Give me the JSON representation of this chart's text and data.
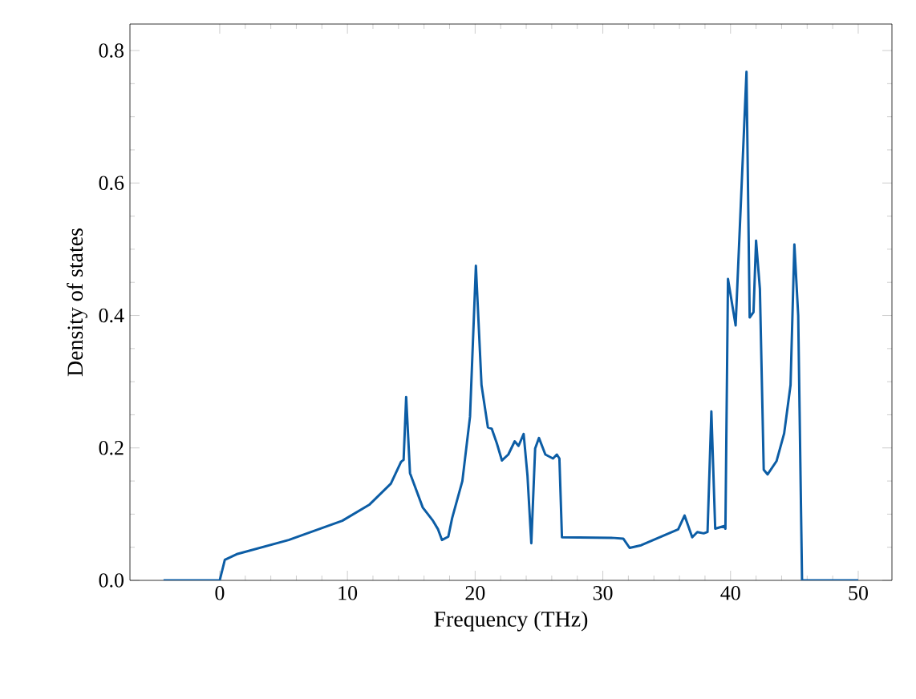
{
  "chart_data": {
    "type": "line",
    "xlabel": "Frequency (THz)",
    "ylabel": "Density of states",
    "x": [
      -4.4,
      0.0,
      0.4,
      1.4,
      5.4,
      9.6,
      11.7,
      13.4,
      14.2,
      14.4,
      14.6,
      14.9,
      15.9,
      16.7,
      17.1,
      17.4,
      17.9,
      18.2,
      19.0,
      19.6,
      20.06,
      20.5,
      21.0,
      21.3,
      21.7,
      22.1,
      22.6,
      23.1,
      23.4,
      23.8,
      24.1,
      24.4,
      24.7,
      25.0,
      25.5,
      26.1,
      26.4,
      26.6,
      26.8,
      30.9,
      31.6,
      32.1,
      33.0,
      35.9,
      36.4,
      37.0,
      37.4,
      37.9,
      38.2,
      38.5,
      38.8,
      39.5,
      39.6,
      39.8,
      40.4,
      41.25,
      41.5,
      41.8,
      42.0,
      42.3,
      42.6,
      42.9,
      43.6,
      44.2,
      44.7,
      45.0,
      45.3,
      45.6,
      50.0
    ],
    "series": [
      {
        "color": "#0c5da5",
        "values": [
          0,
          0,
          0.031,
          0.04,
          0.061,
          0.09,
          0.114,
          0.146,
          0.179,
          0.182,
          0.277,
          0.162,
          0.11,
          0.09,
          0.077,
          0.061,
          0.066,
          0.094,
          0.15,
          0.247,
          0.475,
          0.295,
          0.231,
          0.229,
          0.207,
          0.181,
          0.19,
          0.21,
          0.203,
          0.221,
          0.158,
          0.056,
          0.199,
          0.215,
          0.19,
          0.184,
          0.19,
          0.184,
          0.065,
          0.064,
          0.063,
          0.049,
          0.053,
          0.077,
          0.098,
          0.065,
          0.073,
          0.071,
          0.073,
          0.255,
          0.078,
          0.082,
          0.078,
          0.455,
          0.385,
          0.768,
          0.397,
          0.405,
          0.513,
          0.44,
          0.167,
          0.16,
          0.18,
          0.222,
          0.295,
          0.507,
          0.4,
          0,
          0
        ]
      }
    ],
    "xlim": [
      -7.03,
      52.64
    ],
    "ylim": [
      0,
      0.84
    ],
    "xticks": [
      0,
      10,
      20,
      30,
      40,
      50
    ],
    "yticks": [
      {
        "value": 0,
        "label": "0.0"
      },
      {
        "value": 0.2,
        "label": "0.2"
      },
      {
        "value": 0.4,
        "label": "0.4"
      },
      {
        "value": 0.6,
        "label": "0.6"
      },
      {
        "value": 0.8,
        "label": "0.8"
      }
    ]
  }
}
